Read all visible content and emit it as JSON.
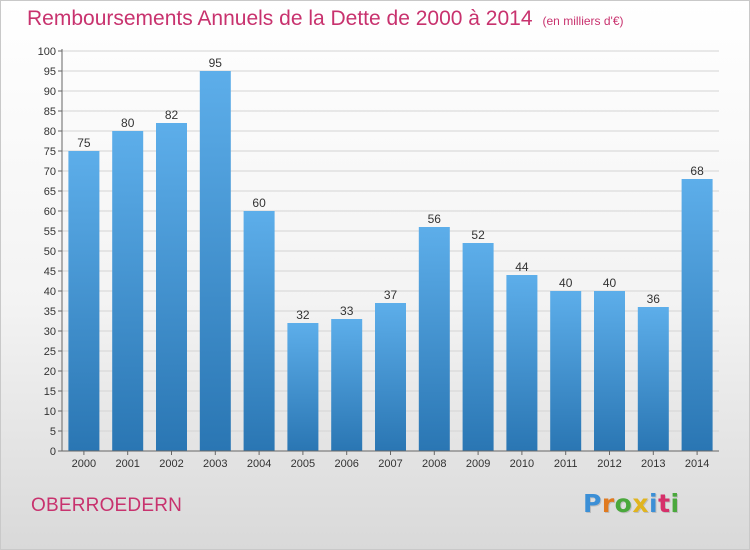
{
  "header": {
    "title": "Remboursements Annuels de la Dette de 2000 à 2014",
    "unit": "(en milliers d'€)"
  },
  "footer": {
    "place": "OBERROEDERN",
    "logo": "Proxiti"
  },
  "colors": {
    "title": "#c8326e",
    "bar_top": "#5daeea",
    "bar_bottom": "#2a76b3",
    "logo": [
      "#3b8fd6",
      "#e07a1f",
      "#4aa83c",
      "#e0b41f",
      "#3b8fd6",
      "#d6306a",
      "#4aa83c"
    ]
  },
  "chart_data": {
    "type": "bar",
    "categories": [
      "2000",
      "2001",
      "2002",
      "2003",
      "2004",
      "2005",
      "2006",
      "2007",
      "2008",
      "2009",
      "2010",
      "2011",
      "2012",
      "2013",
      "2014"
    ],
    "values": [
      75,
      80,
      82,
      95,
      60,
      32,
      33,
      37,
      56,
      52,
      44,
      40,
      40,
      36,
      68
    ],
    "title": "Remboursements Annuels de la Dette de 2000 à 2014",
    "ylim": [
      0,
      100
    ],
    "yticks": [
      0,
      5,
      10,
      15,
      20,
      25,
      30,
      35,
      40,
      45,
      50,
      55,
      60,
      65,
      70,
      75,
      80,
      85,
      90,
      95,
      100
    ],
    "grid": true,
    "data_labels": true
  }
}
